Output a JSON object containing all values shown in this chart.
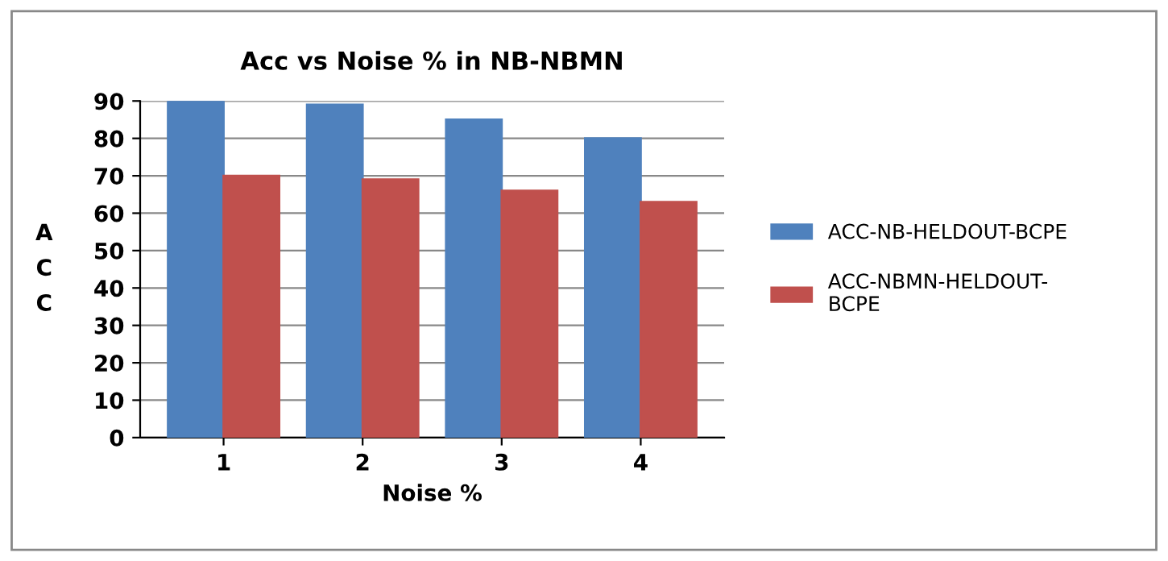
{
  "chart_data": {
    "type": "bar",
    "title": "Acc vs Noise % in NB-NBMN",
    "xlabel": "Noise %",
    "ylabel": "A\nC\nC",
    "categories": [
      "1",
      "2",
      "3",
      "4"
    ],
    "series": [
      {
        "name": "ACC-NB-HELDOUT-BCPE",
        "color": "#4f81bd",
        "values": [
          90,
          89,
          85,
          80
        ]
      },
      {
        "name": "ACC-NBMN-HELDOUT-\nBCPE",
        "color": "#c0504d",
        "values": [
          70,
          69,
          66,
          63
        ]
      }
    ],
    "ylim": [
      0,
      90
    ],
    "yticks": [
      0,
      10,
      20,
      30,
      40,
      50,
      60,
      70,
      80,
      90
    ],
    "grid": "y",
    "legend": "right"
  }
}
